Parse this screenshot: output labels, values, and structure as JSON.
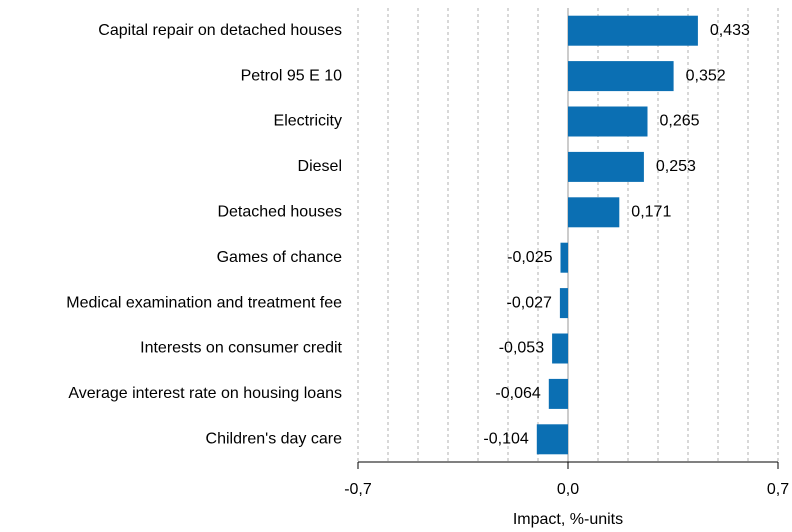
{
  "chart_data": {
    "type": "hbar",
    "categories": [
      "Capital repair on detached houses",
      "Petrol 95 E 10",
      "Electricity",
      "Diesel",
      "Detached houses",
      "Games of chance",
      "Medical examination and treatment fee",
      "Interests on consumer credit",
      "Average interest rate on housing loans",
      "Children's day care"
    ],
    "values": [
      0.433,
      0.352,
      0.265,
      0.253,
      0.171,
      -0.025,
      -0.027,
      -0.053,
      -0.064,
      -0.104
    ],
    "value_labels": [
      "0,433",
      "0,352",
      "0,265",
      "0,253",
      "0,171",
      "-0,025",
      "-0,027",
      "-0,053",
      "-0,064",
      "-0,104"
    ],
    "color": "#0b6fb3",
    "xlabel": "Impact, %-units",
    "xlim": [
      -0.7,
      0.7
    ],
    "xticks": [
      {
        "value": -0.7,
        "label": "-0,7"
      },
      {
        "value": 0.0,
        "label": "0,0"
      },
      {
        "value": 0.7,
        "label": "0,7"
      }
    ],
    "xminorticks": [
      -0.6,
      -0.5,
      -0.4,
      -0.3,
      -0.2,
      -0.1,
      0.1,
      0.2,
      0.3,
      0.4,
      0.5,
      0.6
    ],
    "grid": true
  }
}
